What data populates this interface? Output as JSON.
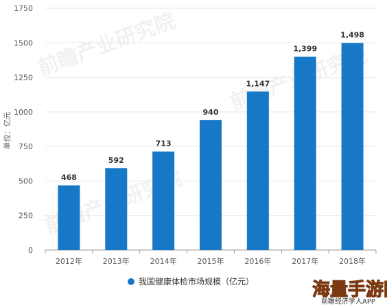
{
  "chart_data": {
    "type": "bar",
    "categories": [
      "2012年",
      "2013年",
      "2014年",
      "2015年",
      "2016年",
      "2017年",
      "2018年"
    ],
    "values": [
      468,
      592,
      713,
      940,
      1147,
      1399,
      1498
    ],
    "value_labels": [
      "468",
      "592",
      "713",
      "940",
      "1,147",
      "1,399",
      "1,498"
    ],
    "series": [
      {
        "name": "我国健康体检市场规模（亿元）",
        "values": [
          468,
          592,
          713,
          940,
          1147,
          1399,
          1498
        ]
      }
    ],
    "ylabel": "单位：亿元",
    "ylim": [
      0,
      1750
    ],
    "yticks": [
      0,
      250,
      500,
      750,
      1000,
      1250,
      1500,
      1750
    ],
    "ytick_labels": [
      "0",
      "250",
      "500",
      "750",
      "1000",
      "1250",
      "1500",
      "1750"
    ],
    "grid": true,
    "legend_position": "bottom",
    "bar_color": "#1878c8"
  },
  "watermarks": {
    "brand": "前瞻产业研究院",
    "corner_big": "海量手游网",
    "corner_small": "前瞻经济学人APP"
  }
}
